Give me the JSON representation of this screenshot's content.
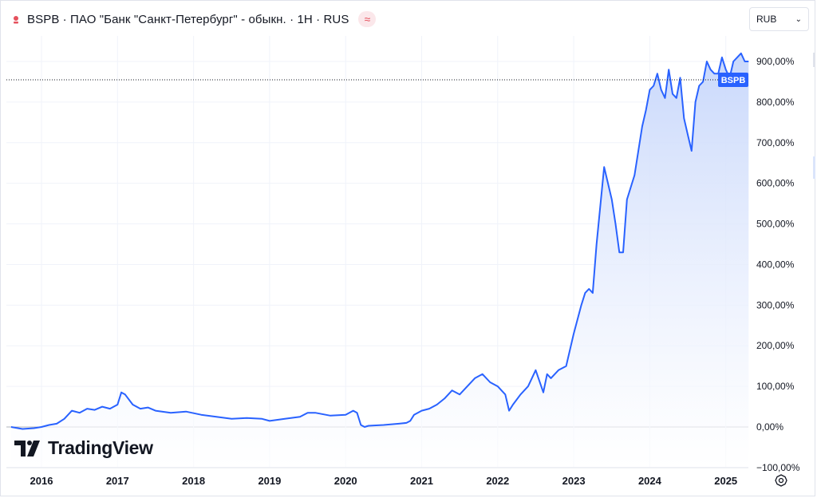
{
  "header": {
    "title": "BSPB · ПАО \"Банк \"Санкт-Петербург\" - обыкн. · 1Н · RUS",
    "compare_icon": "approx-wave-icon",
    "symbol_icon": "red-pin-icon"
  },
  "currency_select": {
    "value": "RUB"
  },
  "logo": {
    "text": "TradingView"
  },
  "colors": {
    "line": "#2962ff",
    "fill_top": "#c9d8fb",
    "fill_bottom": "#ffffff",
    "label_bg": "#2962ff",
    "grid": "#f0f3fa"
  },
  "chart_data": {
    "type": "area",
    "series": [
      {
        "name": "BSPB",
        "x": [
          2015.6,
          2015.75,
          2015.9,
          2016.0,
          2016.1,
          2016.2,
          2016.3,
          2016.4,
          2016.5,
          2016.6,
          2016.7,
          2016.8,
          2016.9,
          2017.0,
          2017.05,
          2017.1,
          2017.2,
          2017.3,
          2017.4,
          2017.5,
          2017.7,
          2017.9,
          2018.1,
          2018.3,
          2018.5,
          2018.7,
          2018.9,
          2019.0,
          2019.2,
          2019.4,
          2019.5,
          2019.6,
          2019.8,
          2020.0,
          2020.1,
          2020.15,
          2020.2,
          2020.25,
          2020.3,
          2020.5,
          2020.7,
          2020.8,
          2020.85,
          2020.9,
          2021.0,
          2021.1,
          2021.2,
          2021.3,
          2021.4,
          2021.5,
          2021.6,
          2021.7,
          2021.8,
          2021.9,
          2022.0,
          2022.1,
          2022.15,
          2022.2,
          2022.3,
          2022.4,
          2022.5,
          2022.6,
          2022.65,
          2022.7,
          2022.8,
          2022.9,
          2023.0,
          2023.1,
          2023.15,
          2023.2,
          2023.25,
          2023.3,
          2023.4,
          2023.5,
          2023.55,
          2023.6,
          2023.65,
          2023.7,
          2023.8,
          2023.85,
          2023.9,
          2023.95,
          2024.0,
          2024.05,
          2024.1,
          2024.15,
          2024.2,
          2024.25,
          2024.3,
          2024.35,
          2024.4,
          2024.45,
          2024.5,
          2024.55,
          2024.6,
          2024.65,
          2024.7,
          2024.75,
          2024.8,
          2024.85,
          2024.9,
          2024.95,
          2025.0,
          2025.05,
          2025.1,
          2025.15,
          2025.2,
          2025.25,
          2025.3
        ],
        "values": [
          0,
          -5,
          -3,
          0,
          5,
          8,
          20,
          40,
          35,
          45,
          42,
          50,
          45,
          55,
          85,
          80,
          55,
          45,
          48,
          40,
          35,
          38,
          30,
          25,
          20,
          22,
          20,
          15,
          20,
          25,
          35,
          35,
          28,
          30,
          40,
          35,
          5,
          0,
          3,
          5,
          8,
          10,
          15,
          30,
          40,
          45,
          55,
          70,
          90,
          80,
          100,
          120,
          130,
          110,
          100,
          80,
          40,
          55,
          80,
          100,
          140,
          85,
          130,
          120,
          140,
          150,
          230,
          300,
          330,
          340,
          330,
          450,
          640,
          560,
          500,
          430,
          430,
          560,
          620,
          680,
          740,
          780,
          830,
          840,
          870,
          830,
          810,
          880,
          820,
          810,
          860,
          760,
          720,
          680,
          800,
          840,
          850,
          900,
          880,
          870,
          870,
          910,
          880,
          860,
          900,
          910,
          920,
          900,
          900
        ]
      }
    ],
    "last_label": "BSPB",
    "y_ticks": [
      "900,00%",
      "800,00%",
      "700,00%",
      "600,00%",
      "500,00%",
      "400,00%",
      "300,00%",
      "200,00%",
      "100,00%",
      "0,00%",
      "−100,00%"
    ],
    "x_ticks": [
      "2016",
      "2017",
      "2018",
      "2019",
      "2020",
      "2021",
      "2022",
      "2023",
      "2024",
      "2025"
    ],
    "xlim": [
      2015.6,
      2025.4
    ],
    "ylim": [
      -100,
      950
    ],
    "y_unit": "%",
    "grid": true,
    "legend": "none"
  }
}
